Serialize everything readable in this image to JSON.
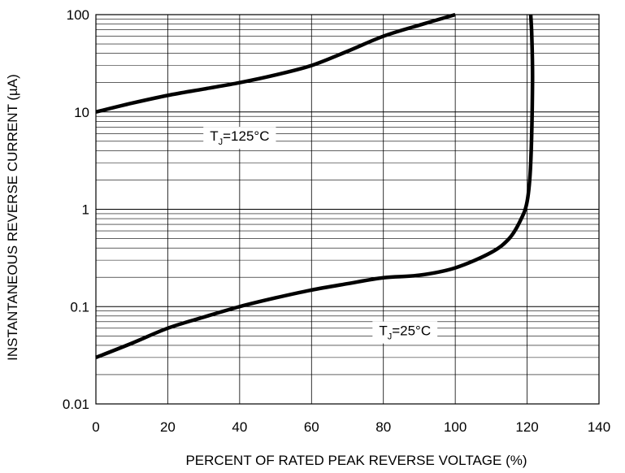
{
  "chart_data": {
    "type": "line",
    "title": "",
    "xlabel": "PERCENT OF RATED PEAK REVERSE VOLTAGE (%)",
    "ylabel": "INSTANTANEOUS REVERSE CURRENT (µA)",
    "xlim": [
      0,
      140
    ],
    "ylim": [
      0.01,
      100
    ],
    "yscale": "log",
    "grid": true,
    "x_ticks": [
      "0",
      "20",
      "40",
      "60",
      "80",
      "100",
      "120",
      "140"
    ],
    "y_ticks": [
      "0.01",
      "0.1",
      "1",
      "10",
      "100"
    ],
    "series": [
      {
        "temperature": "125°C",
        "x": [
          0,
          10,
          20,
          30,
          40,
          50,
          60,
          70,
          80,
          90,
          100
        ],
        "y": [
          10,
          12.3,
          14.8,
          17.2,
          20,
          24,
          30,
          42,
          60,
          78,
          100
        ]
      },
      {
        "temperature": "25°C",
        "x": [
          0,
          10,
          20,
          30,
          40,
          50,
          60,
          70,
          80,
          90,
          100,
          110,
          115,
          118,
          120,
          121,
          121.5,
          121.3,
          121
        ],
        "y": [
          0.03,
          0.042,
          0.06,
          0.078,
          0.1,
          0.123,
          0.148,
          0.172,
          0.198,
          0.21,
          0.25,
          0.36,
          0.5,
          0.75,
          1.2,
          3,
          20,
          60,
          100
        ]
      }
    ],
    "annotations": [
      {
        "main": "T",
        "sub": "J",
        "rest": "=125°C",
        "at_x": 40,
        "at_y": 5.8
      },
      {
        "main": "T",
        "sub": "J",
        "rest": "=25°C",
        "at_x": 86,
        "at_y": 0.058
      }
    ]
  }
}
